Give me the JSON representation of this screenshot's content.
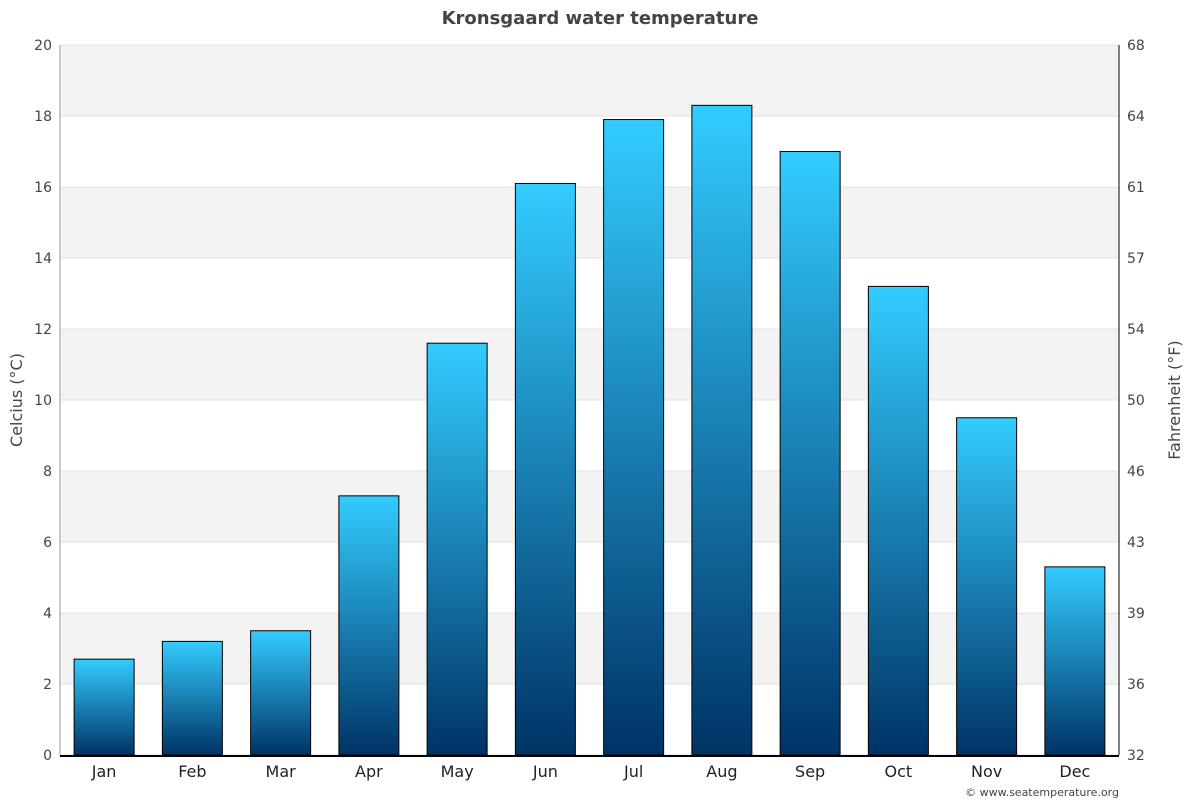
{
  "chart_data": {
    "type": "bar",
    "title": "Kronsgaard water temperature",
    "ylabel": "Celcius (°C)",
    "ylabel_right": "Fahrenheit (°F)",
    "categories": [
      "Jan",
      "Feb",
      "Mar",
      "Apr",
      "May",
      "Jun",
      "Jul",
      "Aug",
      "Sep",
      "Oct",
      "Nov",
      "Dec"
    ],
    "values": [
      2.7,
      3.2,
      3.5,
      7.3,
      11.6,
      16.1,
      17.9,
      18.3,
      17.0,
      13.2,
      9.5,
      5.3
    ],
    "ylim": [
      0,
      20
    ],
    "yticks": [
      0,
      2,
      4,
      6,
      8,
      10,
      12,
      14,
      16,
      18,
      20
    ],
    "yticks_right": [
      "32",
      "36",
      "39",
      "43",
      "46",
      "50",
      "54",
      "57",
      "61",
      "64",
      "68"
    ],
    "grid": true,
    "colors": {
      "bar_top": "#33ccff",
      "bar_bottom": "#003366",
      "band": "#f3f3f3",
      "grid": "#e0e0e0"
    },
    "credit": "© www.seatemperature.org"
  }
}
